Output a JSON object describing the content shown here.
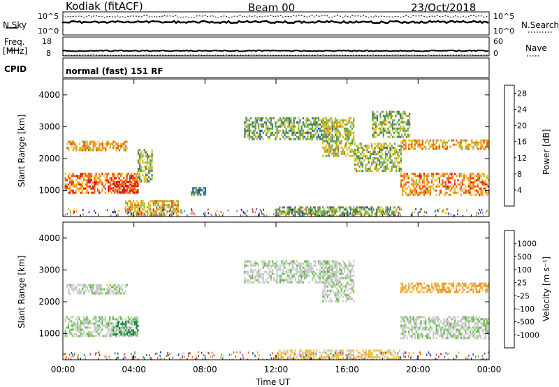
{
  "header": {
    "station": "Kodiak (fitACF)",
    "beam": "Beam 00",
    "date": "23/Oct/2018"
  },
  "param_panels": {
    "nsky_label": "N.Sky",
    "nsearch_label": "N.Search",
    "freq_label_1": "Freq.",
    "freq_label_2": "[MHz]",
    "nave_label": "Nave",
    "cpid_label": "CPID",
    "cpid_value": "normal (fast) 151 RF",
    "noise_ticks_left": [
      "10^5",
      "10^0"
    ],
    "noise_ticks_right": [
      "10^5",
      "10^0"
    ],
    "freq_ticks": [
      "18",
      "8"
    ],
    "nave_ticks": [
      "60",
      "0"
    ]
  },
  "chart_data": [
    {
      "type": "heatmap",
      "name": "power",
      "ylabel": "Slant Range [km]",
      "xlabel": "Time UT",
      "x_ticks": [
        "00:00",
        "04:00",
        "08:00",
        "12:00",
        "16:00",
        "20:00",
        "00:00"
      ],
      "xlim": [
        0,
        24
      ],
      "y_ticks": [
        1000,
        2000,
        3000,
        4000
      ],
      "ylim": [
        180,
        4500
      ],
      "colorbar": {
        "label": "Power [dB]",
        "ticks": [
          4,
          8,
          12,
          16,
          20,
          24,
          28
        ],
        "range": [
          0,
          30
        ],
        "colors": [
          "#1010e8",
          "#2050c0",
          "#3a7a6a",
          "#5a9a50",
          "#a0c030",
          "#f0c020",
          "#f09010",
          "#f05010",
          "#e01010"
        ]
      },
      "regions": [
        {
          "t0": 0.2,
          "t1": 3.6,
          "r0": 2280,
          "r1": 2560,
          "v": 20
        },
        {
          "t0": 0.1,
          "t1": 4.2,
          "r0": 900,
          "r1": 1550,
          "v": 24
        },
        {
          "t0": 2.8,
          "t1": 4.2,
          "r0": 950,
          "r1": 1300,
          "v": 28
        },
        {
          "t0": 4.2,
          "t1": 5.0,
          "r0": 1300,
          "r1": 2300,
          "v": 14
        },
        {
          "t0": 3.5,
          "t1": 6.5,
          "r0": 200,
          "r1": 700,
          "v": 18
        },
        {
          "t0": 7.2,
          "t1": 8.0,
          "r0": 900,
          "r1": 1100,
          "v": 10
        },
        {
          "t0": 10.2,
          "t1": 15.4,
          "r0": 2600,
          "r1": 3300,
          "v": 12
        },
        {
          "t0": 14.6,
          "t1": 16.4,
          "r0": 2100,
          "r1": 3300,
          "v": 16
        },
        {
          "t0": 16.4,
          "t1": 19.0,
          "r0": 1600,
          "r1": 2500,
          "v": 14
        },
        {
          "t0": 17.4,
          "t1": 19.5,
          "r0": 2700,
          "r1": 3500,
          "v": 14
        },
        {
          "t0": 19.0,
          "t1": 24.0,
          "r0": 2300,
          "r1": 2600,
          "v": 20
        },
        {
          "t0": 19.0,
          "t1": 24.0,
          "r0": 850,
          "r1": 1550,
          "v": 22
        },
        {
          "t0": 12.0,
          "t1": 19.0,
          "r0": 200,
          "r1": 500,
          "v": 12
        }
      ]
    },
    {
      "type": "heatmap",
      "name": "velocity",
      "ylabel": "Slant Range [km]",
      "xlabel": "Time UT",
      "x_ticks": [
        "00:00",
        "04:00",
        "08:00",
        "12:00",
        "16:00",
        "20:00",
        "00:00"
      ],
      "xlim": [
        0,
        24
      ],
      "y_ticks": [
        1000,
        2000,
        3000,
        4000
      ],
      "ylim": [
        180,
        4500
      ],
      "colorbar": {
        "label": "Velocity [m s⁻¹]",
        "ticks": [
          "1000",
          "500",
          "100",
          "25",
          "-25",
          "-100",
          "-500",
          "-1000"
        ],
        "colors": [
          "#1030c0",
          "#3060a0",
          "#208050",
          "#60c040",
          "#c8c8c8",
          "#f0c040",
          "#f09020",
          "#f05010",
          "#e01010"
        ]
      },
      "regions": [
        {
          "t0": 0.1,
          "t1": 4.2,
          "r0": 900,
          "r1": 1550,
          "v": 25
        },
        {
          "t0": 2.8,
          "t1": 4.2,
          "r0": 950,
          "r1": 1400,
          "v": 120
        },
        {
          "t0": 0.2,
          "t1": 3.6,
          "r0": 2280,
          "r1": 2560,
          "v": 25
        },
        {
          "t0": 10.2,
          "t1": 15.4,
          "r0": 2600,
          "r1": 3300,
          "v": 25
        },
        {
          "t0": 14.6,
          "t1": 16.4,
          "r0": 2000,
          "r1": 3300,
          "v": 25
        },
        {
          "t0": 19.0,
          "t1": 24.0,
          "r0": 2300,
          "r1": 2600,
          "v": -120
        },
        {
          "t0": 19.0,
          "t1": 24.0,
          "r0": 850,
          "r1": 1550,
          "v": 25
        },
        {
          "t0": 12.0,
          "t1": 19.0,
          "r0": 200,
          "r1": 500,
          "v": -40
        }
      ]
    }
  ]
}
